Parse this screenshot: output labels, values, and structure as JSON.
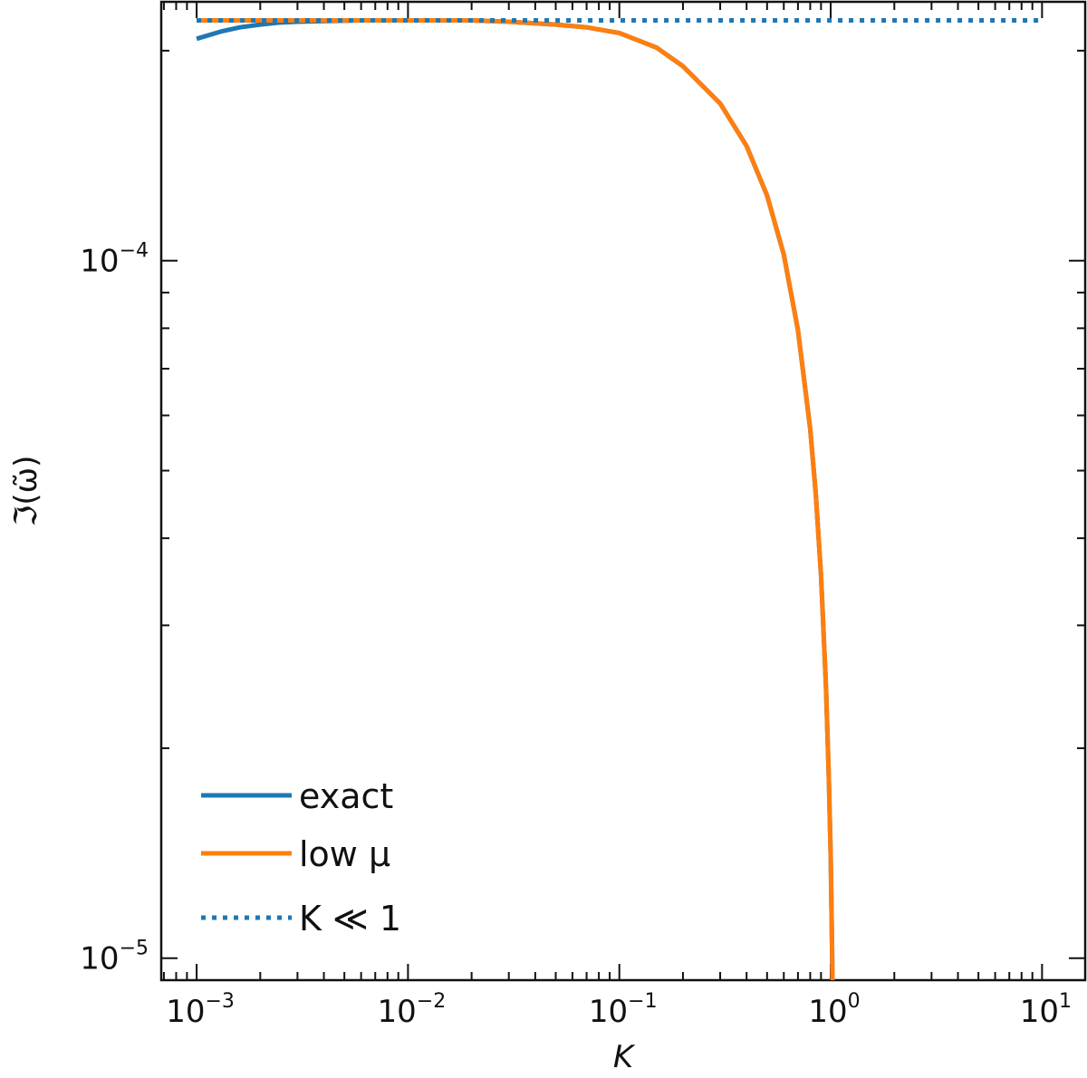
{
  "chart_data": {
    "type": "line",
    "xscale": "log",
    "yscale": "log",
    "xlim": [
      0.00068,
      16
    ],
    "ylim": [
      9.3e-06,
      0.000235
    ],
    "xlabel": "K",
    "ylabel": "ℑ(ω̃)",
    "x_ticks": [
      {
        "base": "10",
        "exp": "−3",
        "value": 0.001
      },
      {
        "base": "10",
        "exp": "−2",
        "value": 0.01
      },
      {
        "base": "10",
        "exp": "−1",
        "value": 0.1
      },
      {
        "base": "10",
        "exp": "0",
        "value": 1
      },
      {
        "base": "10",
        "exp": "1",
        "value": 10
      }
    ],
    "y_ticks": [
      {
        "base": "10",
        "exp": "−4",
        "value": 0.0001
      },
      {
        "base": "10",
        "exp": "−5",
        "value": 1e-05
      }
    ],
    "legend_position": "lower-left",
    "grid": false,
    "series": [
      {
        "name": "exact",
        "color": "#1f77b4",
        "style": "solid",
        "x": [
          0.001,
          0.0013,
          0.0016,
          0.002,
          0.0025,
          0.003,
          0.004,
          0.005,
          0.006,
          0.008,
          0.01,
          0.015,
          0.02,
          0.03,
          0.05,
          0.07,
          0.1,
          0.15,
          0.2,
          0.3,
          0.4,
          0.5,
          0.6,
          0.7,
          0.8,
          0.85,
          0.9,
          0.95,
          0.98,
          1.0,
          1.02
        ],
        "y": [
          0.000208,
          0.000213,
          0.000216,
          0.000218,
          0.0002195,
          0.00022,
          0.0002205,
          0.0002208,
          0.000221,
          0.000221,
          0.000221,
          0.000221,
          0.000221,
          0.00022,
          0.000218,
          0.000216,
          0.000212,
          0.000202,
          0.00019,
          0.000168,
          0.000146,
          0.000124,
          0.000102,
          7.95e-05,
          5.74e-05,
          4.63e-05,
          3.54e-05,
          2.45e-05,
          1.81e-05,
          1.4e-05,
          9.3e-06
        ]
      },
      {
        "name": "low μ",
        "color": "#ff7f0e",
        "style": "solid",
        "x": [
          0.001,
          0.002,
          0.005,
          0.01,
          0.02,
          0.03,
          0.05,
          0.07,
          0.1,
          0.15,
          0.2,
          0.3,
          0.4,
          0.5,
          0.6,
          0.7,
          0.8,
          0.85,
          0.9,
          0.95,
          0.98,
          1.0,
          1.02
        ],
        "y": [
          0.000221,
          0.000221,
          0.000221,
          0.000221,
          0.000221,
          0.00022,
          0.000218,
          0.000216,
          0.000212,
          0.000202,
          0.00019,
          0.000168,
          0.000146,
          0.000124,
          0.000102,
          7.95e-05,
          5.74e-05,
          4.63e-05,
          3.54e-05,
          2.45e-05,
          1.81e-05,
          1.4e-05,
          9.3e-06
        ]
      },
      {
        "name": "K ≪ 1",
        "color": "#1f77b4",
        "style": "dotted",
        "x": [
          0.001,
          10
        ],
        "y": [
          0.000221,
          0.000221
        ]
      }
    ]
  }
}
